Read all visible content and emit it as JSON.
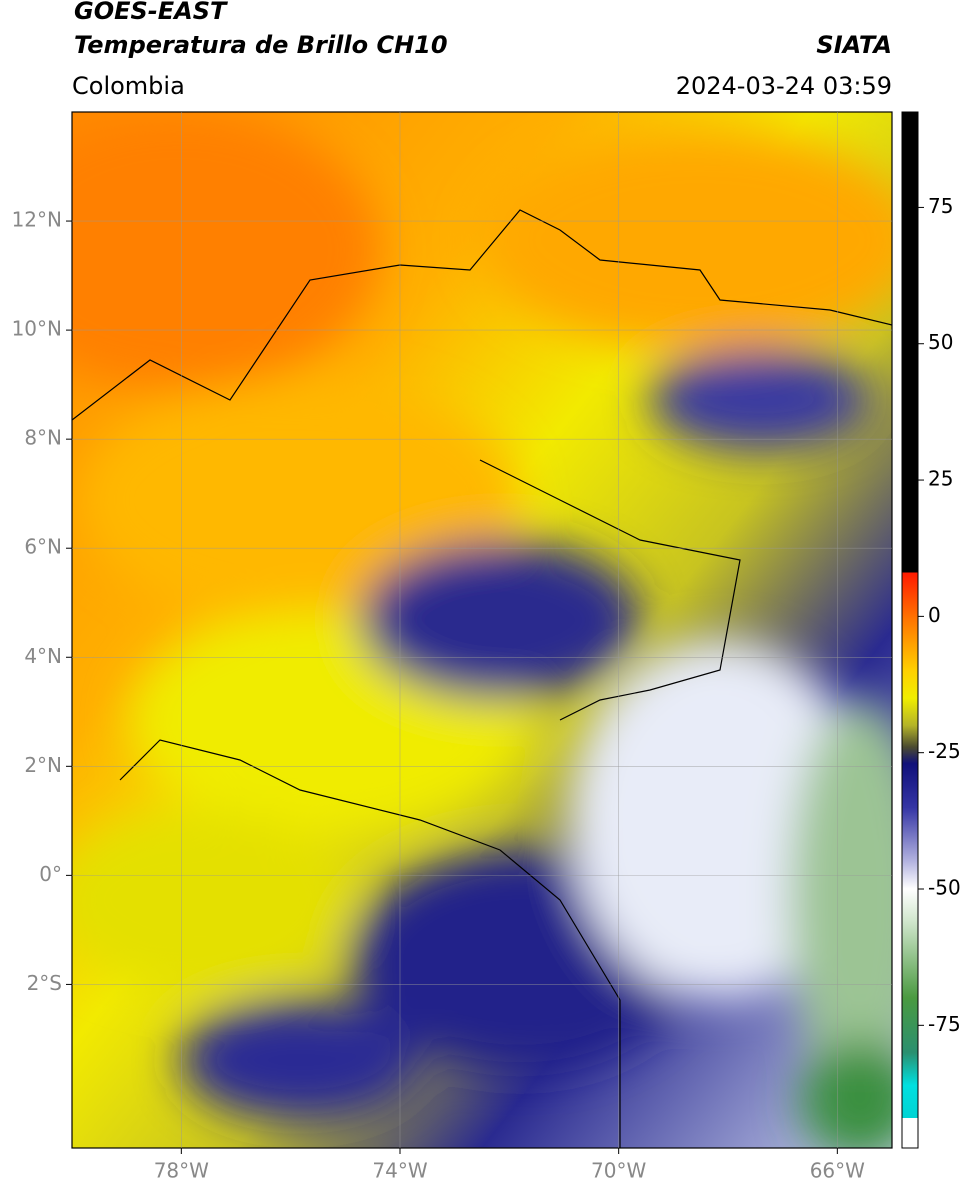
{
  "header": {
    "title": "GOES-EAST",
    "subtitle": "Temperatura de Brillo CH10",
    "region": "Colombia",
    "source": "SIATA",
    "datetime": "2024-03-24 03:59"
  },
  "map": {
    "xlim": [
      -80,
      -65
    ],
    "ylim": [
      -5,
      14
    ],
    "grid": true,
    "xticks": [
      {
        "value": -78,
        "label": "78°W"
      },
      {
        "value": -74,
        "label": "74°W"
      },
      {
        "value": -70,
        "label": "70°W"
      },
      {
        "value": -66,
        "label": "66°W"
      }
    ],
    "yticks": [
      {
        "value": 12,
        "label": "12°N"
      },
      {
        "value": 10,
        "label": "10°N"
      },
      {
        "value": 8,
        "label": "8°N"
      },
      {
        "value": 6,
        "label": "6°N"
      },
      {
        "value": 4,
        "label": "4°N"
      },
      {
        "value": 2,
        "label": "2°N"
      },
      {
        "value": 0,
        "label": "0°"
      },
      {
        "value": -2,
        "label": "2°S"
      }
    ]
  },
  "colorbar": {
    "lim": [
      -97.5,
      92.5
    ],
    "ticks": [
      75,
      50,
      25,
      0,
      -25,
      -50,
      -75
    ],
    "colormap": [
      {
        "value": 92.5,
        "color": "#000000"
      },
      {
        "value": 8,
        "color": "#000000"
      },
      {
        "value": 8,
        "color": "#ff1a00"
      },
      {
        "value": 0,
        "color": "#ff7000"
      },
      {
        "value": -10,
        "color": "#ffd000"
      },
      {
        "value": -15,
        "color": "#f0ee00"
      },
      {
        "value": -20,
        "color": "#b4b428"
      },
      {
        "value": -24,
        "color": "#4a4a30"
      },
      {
        "value": -27,
        "color": "#10107a"
      },
      {
        "value": -35,
        "color": "#3434a4"
      },
      {
        "value": -45,
        "color": "#b4b4e0"
      },
      {
        "value": -50,
        "color": "#ffffff"
      },
      {
        "value": -56,
        "color": "#d0e6cc"
      },
      {
        "value": -70,
        "color": "#4a9a40"
      },
      {
        "value": -80,
        "color": "#2a9070"
      },
      {
        "value": -86,
        "color": "#00e0e0"
      },
      {
        "value": -92,
        "color": "#00d4d4"
      },
      {
        "value": -92,
        "color": "#ffffff"
      },
      {
        "value": -97.5,
        "color": "#ffffff"
      }
    ]
  }
}
